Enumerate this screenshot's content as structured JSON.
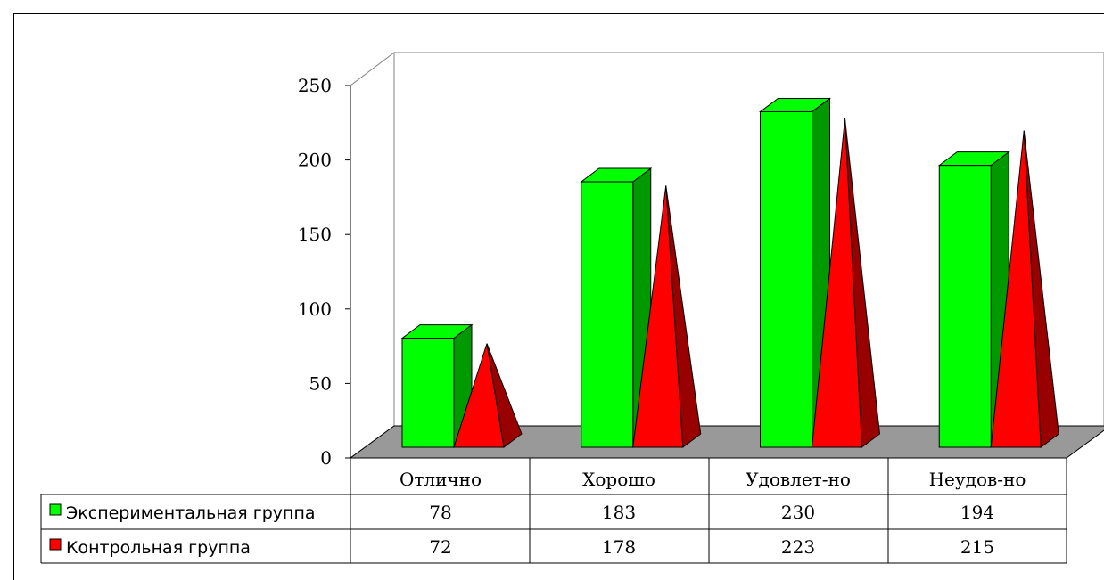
{
  "chart_data": {
    "type": "bar",
    "categories": [
      "Отлично",
      "Хорошо",
      "Удовлет-но",
      "Неудов-но"
    ],
    "series": [
      {
        "name": "Экспериментальная группа",
        "values": [
          78,
          183,
          230,
          194
        ],
        "shape": "box",
        "color": "#00ff00",
        "side_color": "#009900"
      },
      {
        "name": "Контрольная группа",
        "values": [
          72,
          178,
          223,
          215
        ],
        "shape": "pyramid",
        "color": "#ff0000",
        "side_color": "#990000"
      }
    ],
    "yticks": [
      "0",
      "50",
      "100",
      "150",
      "200",
      "250"
    ],
    "ylim": [
      0,
      250
    ],
    "floor_color": "#999999",
    "data_table": true,
    "grid": false,
    "projection": "3d"
  }
}
